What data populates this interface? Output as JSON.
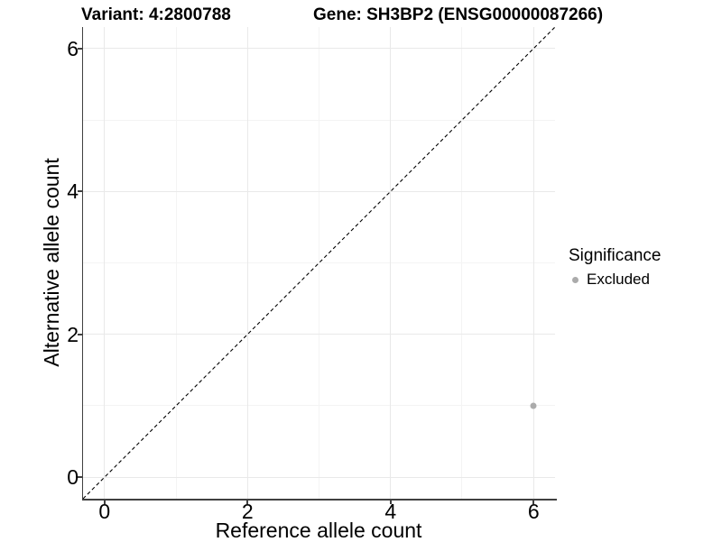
{
  "chart_data": {
    "type": "scatter",
    "title_left": "Variant: 4:2800788",
    "title_right": "Gene: SH3BP2 (ENSG00000087266)",
    "xlabel": "Reference allele count",
    "ylabel": "Alternative allele count",
    "xlim": [
      -0.3,
      6.3
    ],
    "ylim": [
      -0.3,
      6.3
    ],
    "x_ticks": [
      0,
      2,
      4,
      6
    ],
    "x_minor_ticks": [
      1,
      3,
      5
    ],
    "y_ticks": [
      0,
      2,
      4,
      6
    ],
    "y_minor_ticks": [
      1,
      3,
      5
    ],
    "grid": "major+minor",
    "legend_position": "right",
    "series": [
      {
        "name": "Excluded",
        "color": "#ababab",
        "points": [
          {
            "x": 6,
            "y": 1
          }
        ]
      }
    ],
    "reference_line": {
      "kind": "identity",
      "style": "dashed",
      "color": "#000000"
    },
    "legend": {
      "title": "Significance",
      "entries": [
        {
          "label": "Excluded",
          "color": "#ababab"
        }
      ]
    }
  },
  "colors": {
    "background": "#ffffff",
    "axis_line": "#404040",
    "tick_mark": "#404040",
    "grid_major": "#e9e9e9",
    "grid_minor": "#f4f4f4",
    "text": "#000000",
    "point": "#ababab"
  }
}
